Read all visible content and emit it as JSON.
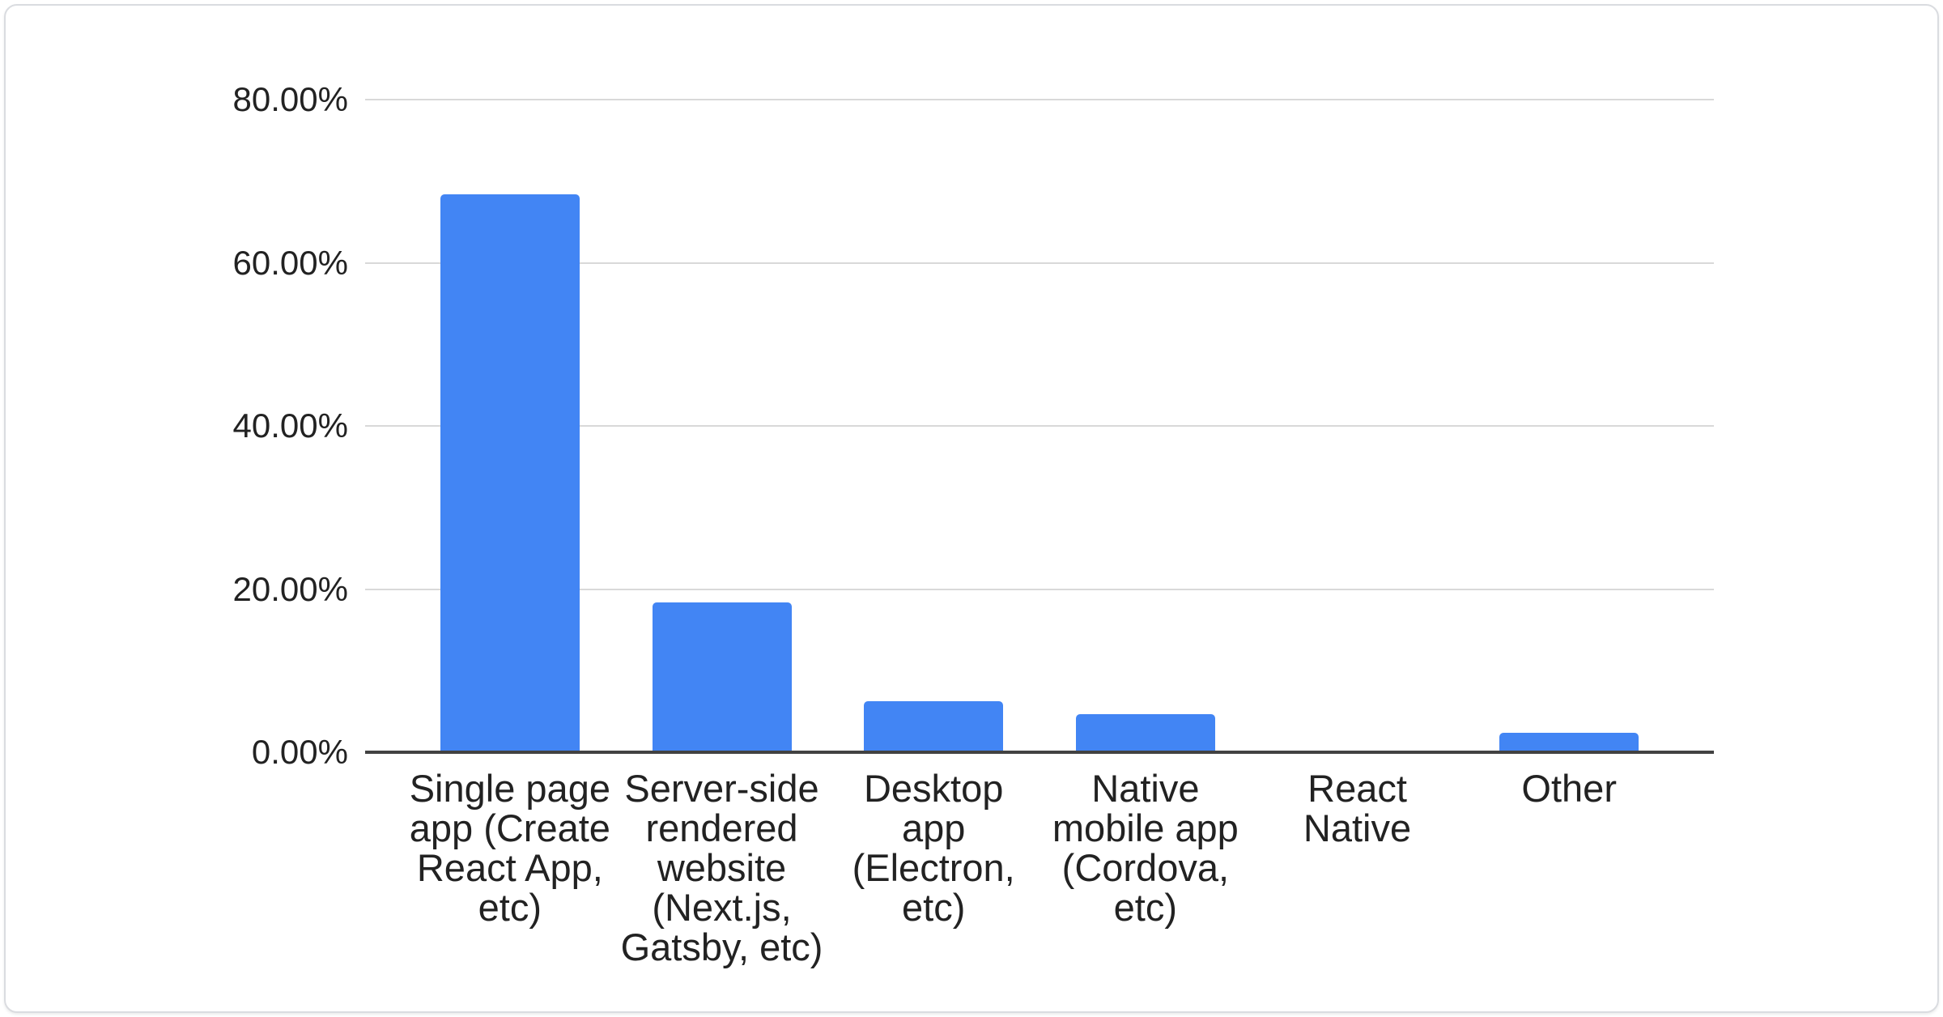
{
  "chart_data": {
    "type": "bar",
    "title": "",
    "xlabel": "",
    "ylabel": "",
    "legend": "none",
    "grid": true,
    "ylim": [
      0,
      80
    ],
    "yticks": [
      {
        "label": "80.00%",
        "value": 80
      },
      {
        "label": "60.00%",
        "value": 60
      },
      {
        "label": "40.00%",
        "value": 40
      },
      {
        "label": "20.00%",
        "value": 20
      },
      {
        "label": "0.00%",
        "value": 0
      }
    ],
    "categories": [
      "Single page app (Create React App, etc)",
      "Server-side rendered website (Next.js, Gatsby, etc)",
      "Desktop app (Electron, etc)",
      "Native mobile app (Cordova, etc)",
      "React Native",
      "Other"
    ],
    "category_label_lines": [
      [
        "Single page",
        "app (Create",
        "React App,",
        "etc)"
      ],
      [
        "Server-side",
        "rendered",
        "website",
        "(Next.js,",
        "Gatsby, etc)"
      ],
      [
        "Desktop",
        "app",
        "(Electron,",
        "etc)"
      ],
      [
        "Native",
        "mobile app",
        "(Cordova,",
        "etc)"
      ],
      [
        "React",
        "Native"
      ],
      [
        "Other"
      ]
    ],
    "values": [
      68.4,
      18.4,
      6.3,
      4.7,
      0,
      2.4
    ],
    "colors": {
      "bar": "#4285f4",
      "gridline": "#d9d9d9",
      "axis_line": "#424242",
      "label_text": "#222222",
      "card_border": "#dadce0",
      "background": "#ffffff"
    }
  }
}
